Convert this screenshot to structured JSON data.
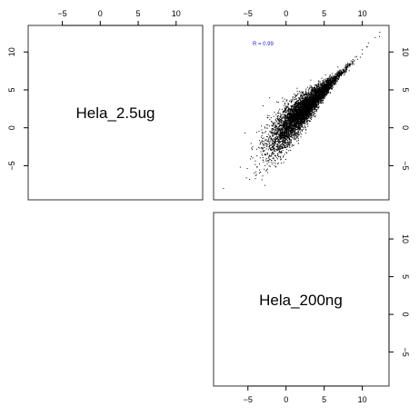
{
  "chart_data": {
    "type": "scatter",
    "layout": "pairs-matrix",
    "variables": [
      "Hela_2.5ug",
      "Hela_200ng"
    ],
    "x_ticks": [
      -5,
      0,
      5,
      10
    ],
    "y_ticks": [
      -5,
      0,
      5,
      10
    ],
    "xlim": [
      -9.5,
      13.5
    ],
    "ylim": [
      -9.5,
      13.5
    ],
    "annotation": "R = 0.99",
    "correlation": 0.99,
    "scatter": {
      "x_variable": "Hela_200ng",
      "y_variable": "Hela_2.5ug",
      "point_count": 6000,
      "x_range": [
        -8.5,
        12.5
      ],
      "y_range": [
        -8.5,
        12.5
      ],
      "trend": "y ≈ x",
      "point_color": "#000000"
    }
  }
}
